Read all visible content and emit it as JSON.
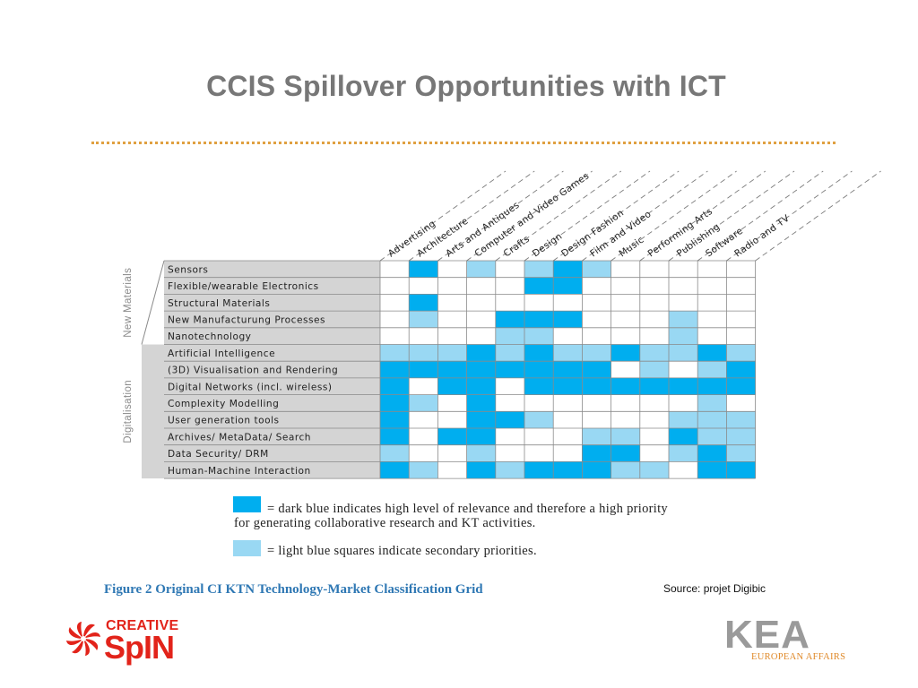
{
  "slide": {
    "title": "CCIS Spillover Opportunities with ICT"
  },
  "chart_data": {
    "type": "table",
    "columns": [
      "Advertising",
      "Architecture",
      "Arts and Antiques",
      "Computer and Video Games",
      "Crafts",
      "Design",
      "Design Fashion",
      "Film and Video",
      "Music",
      "Performing Arts",
      "Publishing",
      "Software",
      "Radio and TV"
    ],
    "groups": [
      {
        "name": "New Materials",
        "rows": [
          {
            "label": "Sensors",
            "cells": [
              0,
              2,
              0,
              1,
              0,
              1,
              2,
              1,
              0,
              0,
              0,
              0,
              0
            ]
          },
          {
            "label": "Flexible/wearable Electronics",
            "cells": [
              0,
              0,
              0,
              0,
              0,
              2,
              2,
              0,
              0,
              0,
              0,
              0,
              0
            ]
          },
          {
            "label": "Structural Materials",
            "cells": [
              0,
              2,
              0,
              0,
              0,
              0,
              0,
              0,
              0,
              0,
              0,
              0,
              0
            ]
          },
          {
            "label": "New Manufacturung Processes",
            "cells": [
              0,
              1,
              0,
              0,
              2,
              2,
              2,
              0,
              0,
              0,
              1,
              0,
              0
            ]
          },
          {
            "label": "Nanotechnology",
            "cells": [
              0,
              0,
              0,
              0,
              1,
              1,
              0,
              0,
              0,
              0,
              1,
              0,
              0
            ]
          }
        ]
      },
      {
        "name": "Digitalisation",
        "rows": [
          {
            "label": "Artificial Intelligence",
            "cells": [
              1,
              1,
              1,
              2,
              1,
              2,
              1,
              1,
              2,
              1,
              1,
              2,
              1
            ]
          },
          {
            "label": "(3D) Visualisation and Rendering",
            "cells": [
              2,
              2,
              2,
              2,
              2,
              2,
              2,
              2,
              0,
              1,
              0,
              1,
              2
            ]
          },
          {
            "label": "Digital Networks (incl. wireless)",
            "cells": [
              2,
              0,
              2,
              2,
              0,
              2,
              2,
              2,
              2,
              2,
              2,
              2,
              2
            ]
          },
          {
            "label": "Complexity Modelling",
            "cells": [
              2,
              1,
              0,
              2,
              0,
              0,
              0,
              0,
              0,
              0,
              0,
              1,
              0
            ]
          },
          {
            "label": "User generation tools",
            "cells": [
              2,
              0,
              0,
              2,
              2,
              1,
              0,
              0,
              0,
              0,
              1,
              1,
              1
            ]
          },
          {
            "label": "Archives/ MetaData/ Search",
            "cells": [
              2,
              0,
              2,
              2,
              0,
              0,
              0,
              1,
              1,
              0,
              2,
              1,
              1
            ]
          },
          {
            "label": "Data Security/ DRM",
            "cells": [
              1,
              0,
              0,
              1,
              0,
              0,
              0,
              2,
              2,
              0,
              1,
              2,
              1
            ]
          },
          {
            "label": "Human-Machine Interaction",
            "cells": [
              2,
              1,
              0,
              2,
              1,
              2,
              2,
              2,
              1,
              1,
              0,
              2,
              2
            ]
          }
        ]
      }
    ],
    "levels": {
      "0": "none",
      "1": "secondary priority (light blue)",
      "2": "high priority (dark blue)"
    }
  },
  "colors": {
    "dark_blue": "#00aeef",
    "light_blue": "#99d8f3",
    "group_band": "#d4d4d4",
    "grid_line": "#8a8a8a",
    "title_gray": "#777777",
    "rule_orange": "#e0a040",
    "caption_blue": "#2f78b4",
    "logo_red": "#e2231a",
    "logo_orange": "#e08a2a"
  },
  "legend": {
    "high_line1": "= dark blue indicates high level of relevance and therefore a high priority",
    "high_line2": "for generating collaborative research and KT activities.",
    "secondary": "= light blue squares indicate secondary priorities."
  },
  "figure_caption": "Figure 2 Original CI KTN Technology-Market Classification Grid",
  "source_note": "Source: projet Digibic",
  "logos": {
    "creative_spin": {
      "top": "CREATIVE",
      "bottom": "SpIN",
      "icon": "spiral-flower-icon"
    },
    "kea": {
      "word": "KEA",
      "tagline": "EUROPEAN AFFAIRS"
    }
  }
}
